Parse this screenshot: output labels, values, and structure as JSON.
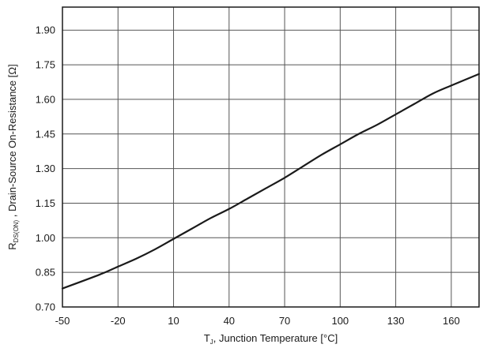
{
  "chart_data": {
    "type": "line",
    "xlabel": {
      "main": "T",
      "sub": "J",
      "rest": ", Junction Temperature [°C]"
    },
    "ylabel": {
      "main": "R",
      "sub": "DS(ON)",
      "rest": " ,  Drain-Source On-Resistance [Ω]"
    },
    "xlim": [
      -50,
      175
    ],
    "ylim": [
      0.7,
      2.0
    ],
    "x_ticks": [
      -50,
      -20,
      10,
      40,
      70,
      100,
      130,
      160
    ],
    "x_tick_labels": [
      "-50",
      "-20",
      "10",
      "40",
      "70",
      "100",
      "130",
      "160"
    ],
    "y_ticks": [
      0.7,
      0.85,
      1.0,
      1.15,
      1.3,
      1.45,
      1.6,
      1.75,
      1.9
    ],
    "y_tick_labels": [
      "0.70",
      "0.85",
      "1.00",
      "1.15",
      "1.30",
      "1.45",
      "1.60",
      "1.75",
      "1.90"
    ],
    "grid": true,
    "series": [
      {
        "color": "#1a1a1a",
        "x": [
          -50,
          -30,
          -20,
          -10,
          0,
          10,
          20,
          30,
          40,
          50,
          60,
          70,
          80,
          90,
          100,
          110,
          120,
          130,
          140,
          150,
          160,
          175
        ],
        "y": [
          0.78,
          0.84,
          0.875,
          0.91,
          0.95,
          0.995,
          1.04,
          1.085,
          1.125,
          1.17,
          1.215,
          1.26,
          1.31,
          1.36,
          1.405,
          1.45,
          1.49,
          1.535,
          1.58,
          1.625,
          1.66,
          1.71
        ]
      }
    ]
  }
}
